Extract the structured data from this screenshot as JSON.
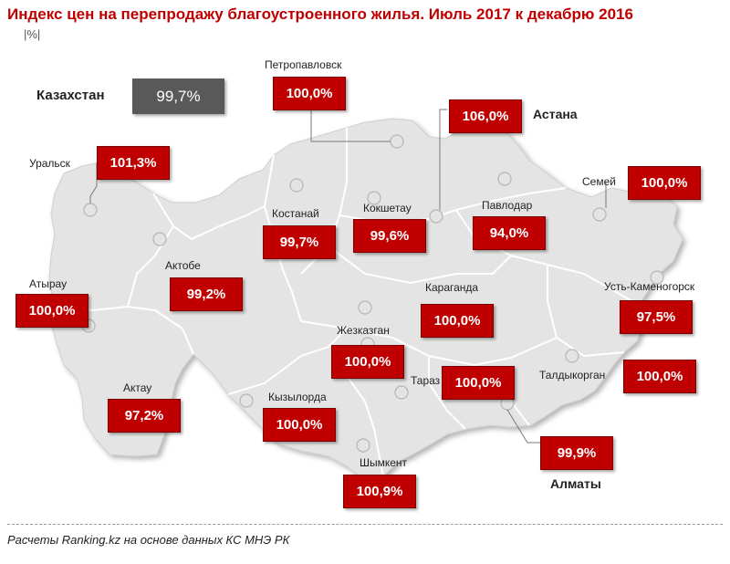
{
  "title": "Индекс цен на перепродажу благоустроенного жилья. Июль 2017 к декабрю 2016",
  "unit": "|%|",
  "national": {
    "name": "Казахстан",
    "value": "99,7%"
  },
  "regions": {
    "petropavlovsk": {
      "name": "Петропавловск",
      "value": "100,0%"
    },
    "astana": {
      "name": "Астана",
      "value": "106,0%"
    },
    "uralsk": {
      "name": "Уральск",
      "value": "101,3%"
    },
    "kostanay": {
      "name": "Костанай",
      "value": "99,7%"
    },
    "kokshetau": {
      "name": "Кокшетау",
      "value": "99,6%"
    },
    "pavlodar": {
      "name": "Павлодар",
      "value": "94,0%"
    },
    "semey": {
      "name": "Семей",
      "value": "100,0%"
    },
    "aktobe": {
      "name": "Актобе",
      "value": "99,2%"
    },
    "atyrau": {
      "name": "Атырау",
      "value": "100,0%"
    },
    "karaganda": {
      "name": "Караганда",
      "value": "100,0%"
    },
    "ust_kamenogorsk": {
      "name": "Усть-Каменогорск",
      "value": "97,5%"
    },
    "zhezkazgan": {
      "name": "Жезказган",
      "value": "100,0%"
    },
    "taraz": {
      "name": "Тараз",
      "value": "100,0%"
    },
    "taldykorgan": {
      "name": "Талдыкорган",
      "value": "100,0%"
    },
    "aktau": {
      "name": "Актау",
      "value": "97,2%"
    },
    "kyzylorda": {
      "name": "Кызылорда",
      "value": "100,0%"
    },
    "almaty": {
      "name": "Алматы",
      "value": "99,9%"
    },
    "shymkent": {
      "name": "Шымкент",
      "value": "100,9%"
    }
  },
  "footer": "Расчеты Ranking.kz на основе данных КС МНЭ РК",
  "colors": {
    "accent": "#c00000",
    "national_box": "#595959",
    "map_fill": "#e4e4e4",
    "map_border": "#ffffff"
  }
}
